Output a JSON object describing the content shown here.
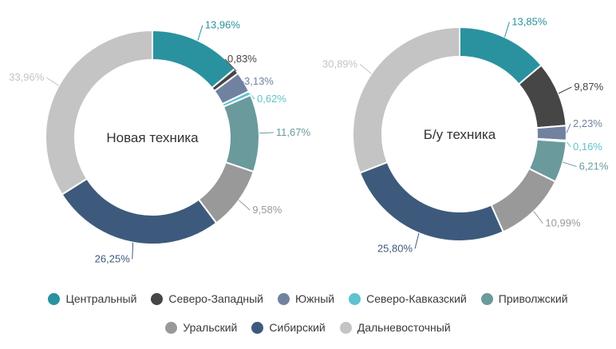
{
  "categories": [
    {
      "name": "Центральный",
      "color": "#2a929f"
    },
    {
      "name": "Северо-Западный",
      "color": "#464646"
    },
    {
      "name": "Южный",
      "color": "#7082a0"
    },
    {
      "name": "Северо-Кавказский",
      "color": "#5ec3cf"
    },
    {
      "name": "Приволжский",
      "color": "#6a9a9c"
    },
    {
      "name": "Уральский",
      "color": "#999999"
    },
    {
      "name": "Сибирский",
      "color": "#3d5a7c"
    },
    {
      "name": "Дальневосточный",
      "color": "#c4c4c4"
    }
  ],
  "chart_data": [
    {
      "type": "pie",
      "title": "Новая техника",
      "categories": [
        "Центральный",
        "Северо-Западный",
        "Южный",
        "Северо-Кавказский",
        "Приволжский",
        "Уральский",
        "Сибирский",
        "Дальневосточный"
      ],
      "values": [
        13.96,
        0.83,
        3.13,
        0.62,
        11.67,
        9.58,
        26.25,
        33.96
      ],
      "labels": [
        "13,96%",
        "0,83%",
        "3,13%",
        "0,62%",
        "11,67%",
        "9,58%",
        "26,25%",
        "33,96%"
      ],
      "legend": "bottom"
    },
    {
      "type": "pie",
      "title": "Б/у техника",
      "categories": [
        "Центральный",
        "Северо-Западный",
        "Южный",
        "Северо-Кавказский",
        "Приволжский",
        "Уральский",
        "Сибирский",
        "Дальневосточный"
      ],
      "values": [
        13.85,
        9.87,
        2.23,
        0.16,
        6.21,
        10.99,
        25.8,
        30.89
      ],
      "labels": [
        "13,85%",
        "9,87%",
        "2,23%",
        "0,16%",
        "6,21%",
        "10,99%",
        "25,80%",
        "30,89%"
      ],
      "legend": "bottom"
    }
  ]
}
